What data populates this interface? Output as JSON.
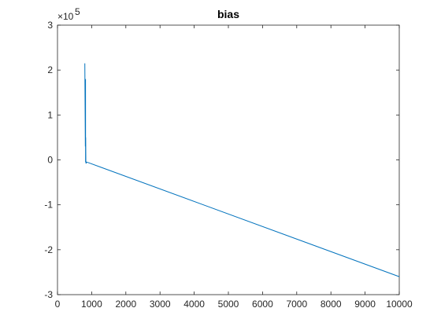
{
  "chart_data": {
    "type": "line",
    "title": "bias",
    "xlabel": "",
    "ylabel": "",
    "xlim": [
      0,
      10000
    ],
    "ylim": [
      -3,
      3
    ],
    "y_exponent_label": "×10",
    "y_exponent_power": "5",
    "x_ticks": [
      0,
      1000,
      2000,
      3000,
      4000,
      5000,
      6000,
      7000,
      8000,
      9000,
      10000
    ],
    "x_tick_labels": [
      "0",
      "1000",
      "2000",
      "3000",
      "4000",
      "5000",
      "6000",
      "7000",
      "8000",
      "9000",
      "10000"
    ],
    "y_ticks": [
      -3,
      -2,
      -1,
      0,
      1,
      2,
      3
    ],
    "y_tick_labels": [
      "-3",
      "-2",
      "-1",
      "0",
      "1",
      "2",
      "3"
    ],
    "grid": false,
    "series": [
      {
        "color": "#0072BD",
        "x": [
          800,
          815,
          820,
          822,
          825,
          830,
          835,
          840,
          845,
          850,
          900,
          10000
        ],
        "y": [
          2.15,
          0.3,
          1.8,
          -0.05,
          0.5,
          -0.02,
          -0.08,
          -0.04,
          -0.06,
          -0.05,
          -0.06,
          -2.6
        ]
      }
    ]
  }
}
